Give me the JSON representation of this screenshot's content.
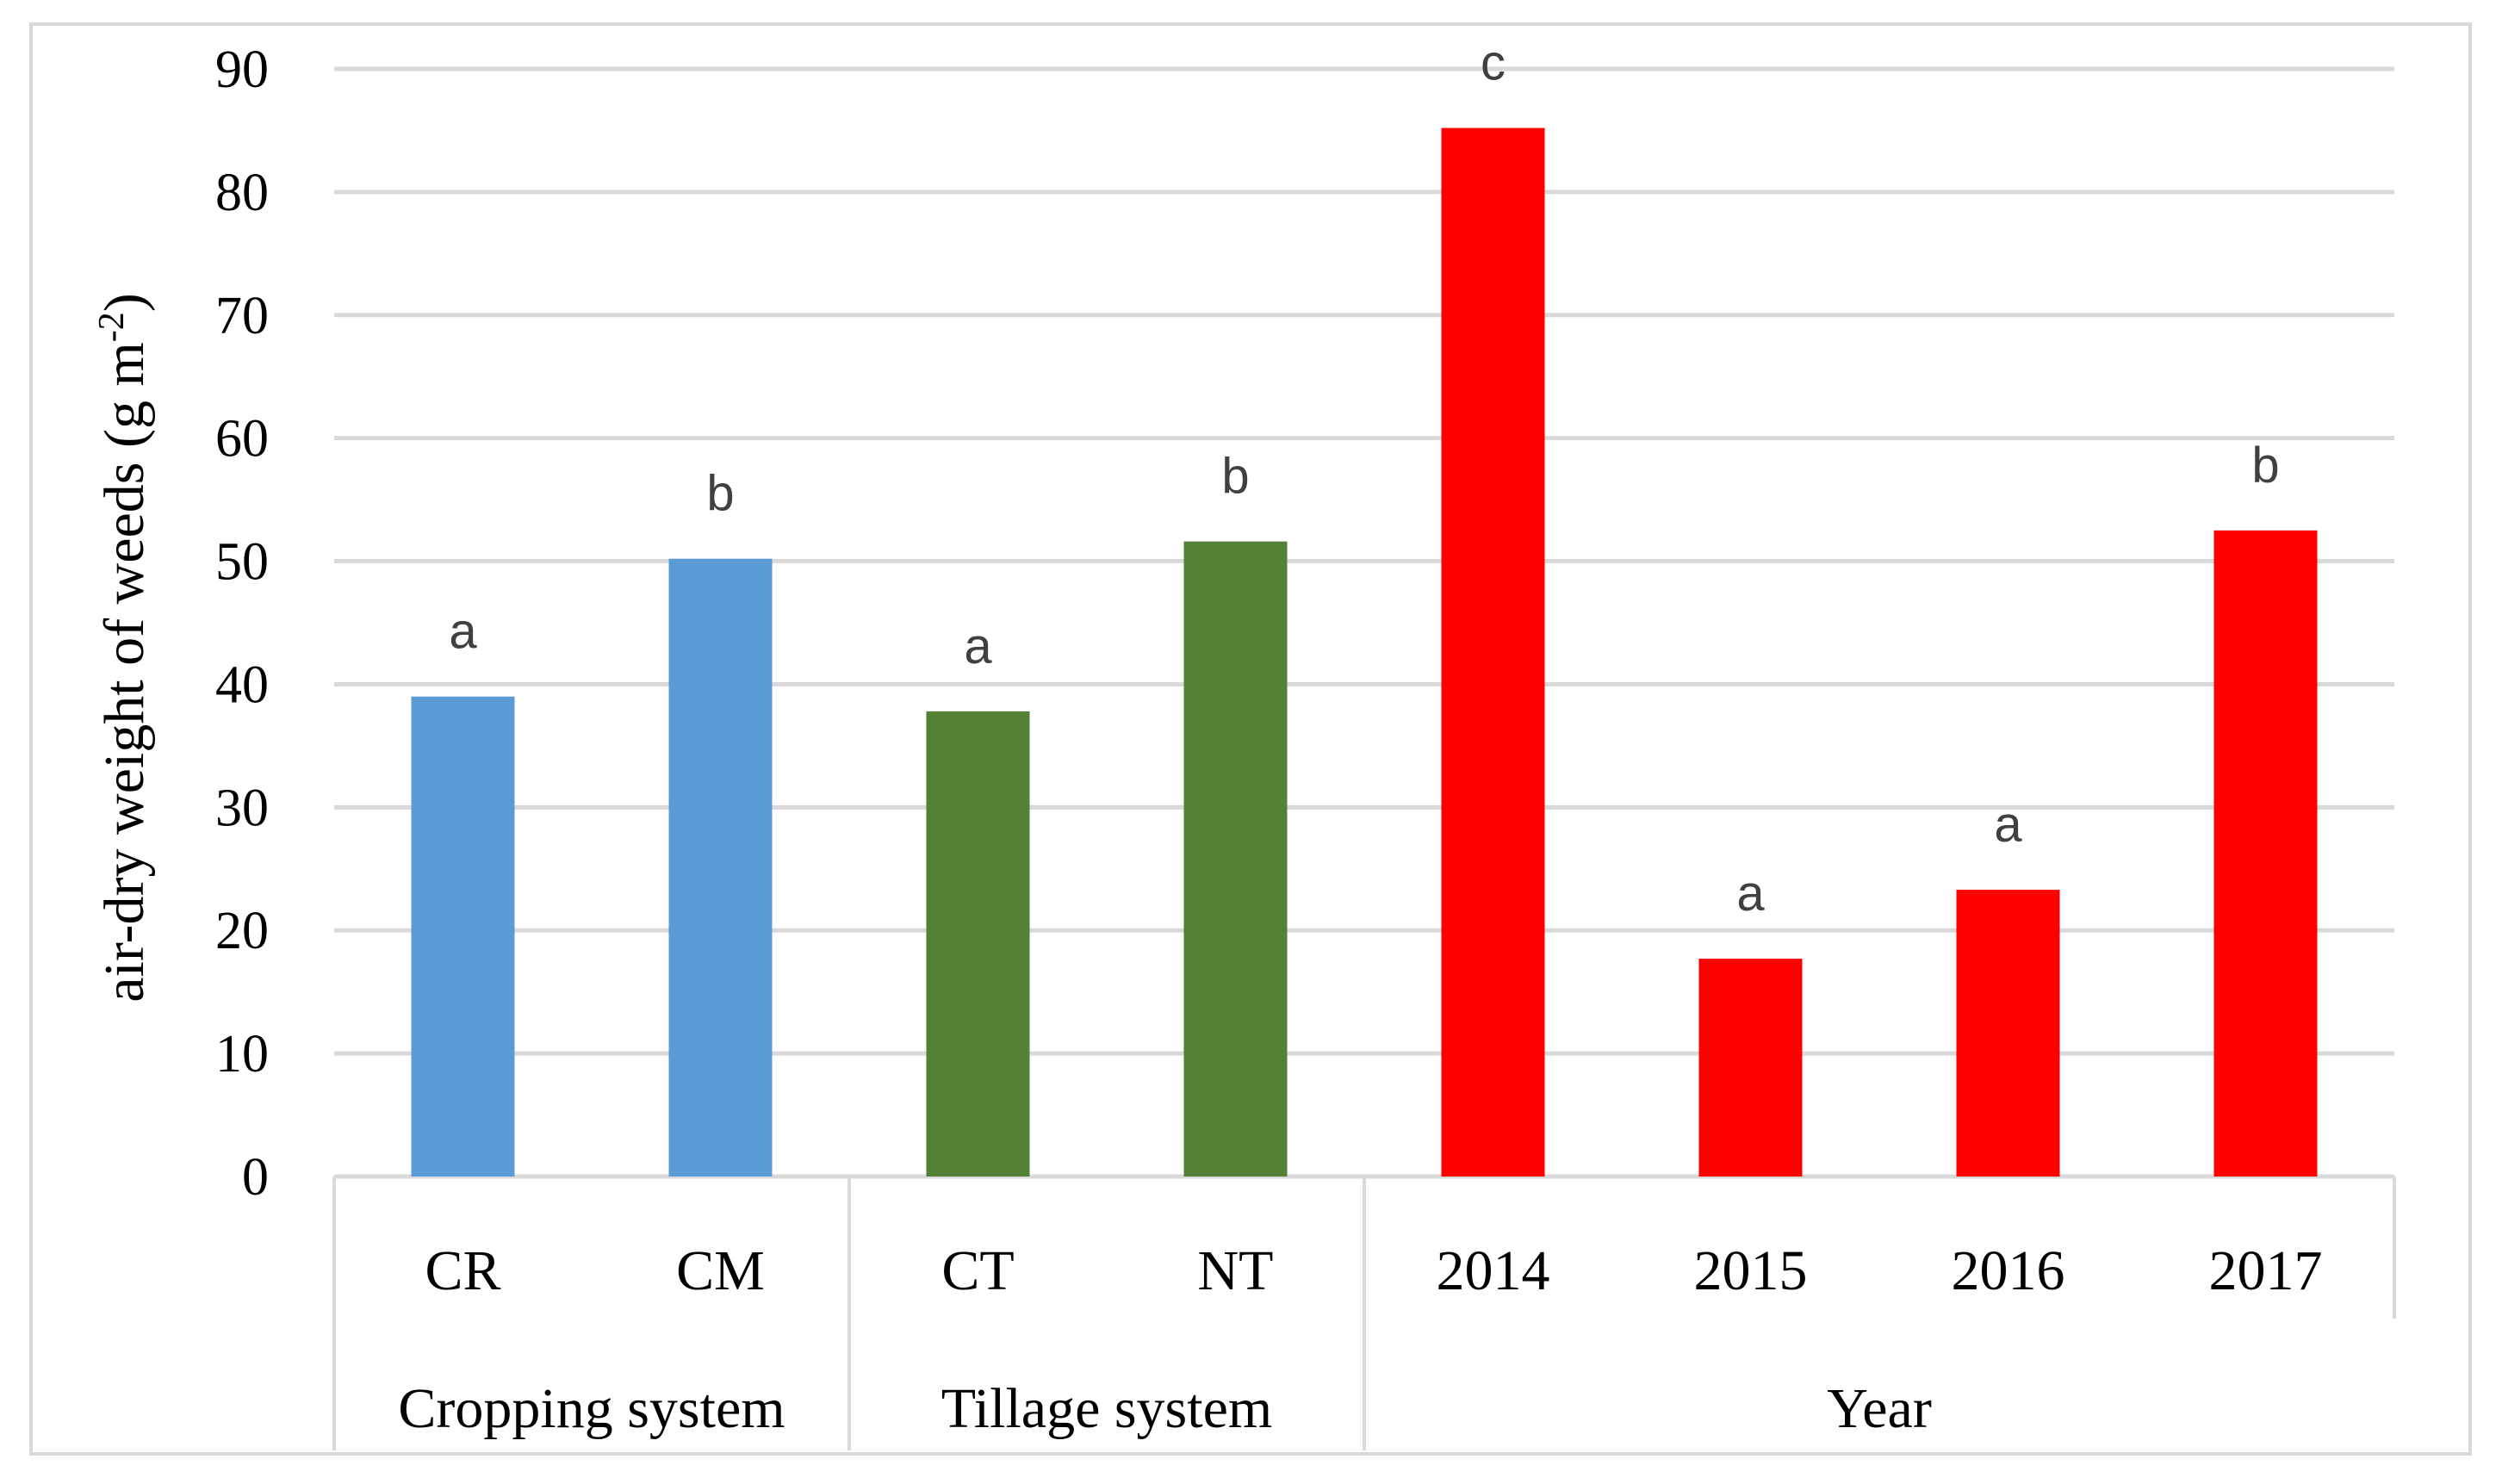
{
  "chart_data": {
    "type": "bar",
    "title": "",
    "xlabel": "",
    "ylabel": "air-dry weight of weeds (g m",
    "ylabel_superscript": "-2",
    "ylabel_suffix": ")",
    "ylim": [
      0,
      90
    ],
    "yticks": [
      "0",
      "10",
      "20",
      "30",
      "40",
      "50",
      "60",
      "70",
      "80",
      "90"
    ],
    "grid": true,
    "legend": "none",
    "groups": [
      {
        "name": "Cropping system",
        "color": "#5B9BD5",
        "bars": [
          {
            "category": "CR",
            "value": 39,
            "label": "a"
          },
          {
            "category": "CM",
            "value": 50.2,
            "label": "b"
          }
        ]
      },
      {
        "name": "Tillage system",
        "color": "#538135",
        "bars": [
          {
            "category": "CT",
            "value": 37.8,
            "label": "a"
          },
          {
            "category": "NT",
            "value": 51.6,
            "label": "b"
          }
        ]
      },
      {
        "name": "Year",
        "color": "#FF0000",
        "bars": [
          {
            "category": "2014",
            "value": 85.2,
            "label": "c"
          },
          {
            "category": "2015",
            "value": 17.7,
            "label": "a"
          },
          {
            "category": "2016",
            "value": 23.3,
            "label": "a"
          },
          {
            "category": "2017",
            "value": 52.5,
            "label": "b"
          }
        ]
      }
    ]
  }
}
